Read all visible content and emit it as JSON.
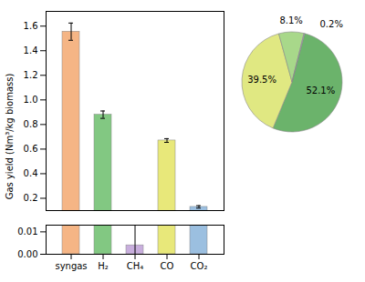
{
  "chart_data": [
    {
      "type": "bar",
      "categories": [
        "syngas",
        "H₂",
        "CH₄",
        "CO",
        "CO₂"
      ],
      "values": [
        1.555,
        0.88,
        0.004,
        0.67,
        0.13
      ],
      "errors": [
        0.07,
        0.03,
        0.025,
        0.015,
        0.01
      ],
      "colors": [
        "#F5B585",
        "#82C882",
        "#C8AEDD",
        "#E8E87A",
        "#9BBFE0"
      ],
      "ylabel": "Gas yield (Nm³/kg biomass)",
      "ylim": [
        0.0,
        1.72
      ],
      "ybreak": [
        0.013,
        0.1
      ],
      "yticks": [
        {
          "value": 0.0,
          "label": "0.00"
        },
        0.01,
        0.2,
        0.4,
        0.6,
        0.8,
        {
          "value": 1.0,
          "label": "1.0"
        },
        1.2,
        1.4,
        1.6
      ]
    },
    {
      "type": "pie",
      "values": [
        52.1,
        39.5,
        8.1,
        0.2
      ],
      "value_labels": [
        "52.1%",
        "39.5%",
        "8.1%",
        "0.2%"
      ],
      "colors": [
        "#6BB36B",
        "#E0E882",
        "#A8D88A",
        "#C8AEDD"
      ],
      "data_labels": true
    }
  ]
}
